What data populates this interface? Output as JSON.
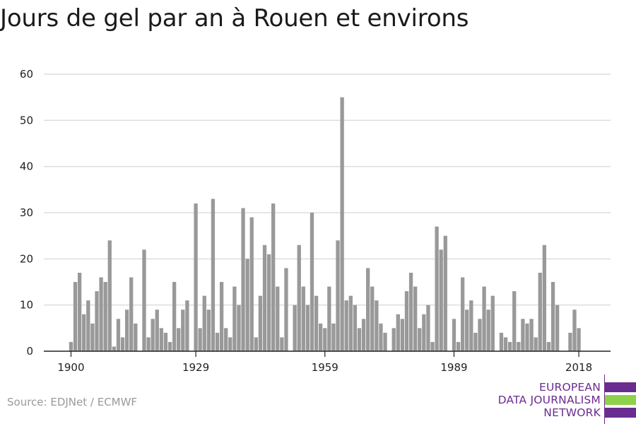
{
  "title": "Jours de gel par an à Rouen et environs",
  "source": "Source: EDJNet / ECMWF",
  "logo": {
    "lines": [
      "EUROPEAN",
      "DATA JOURNALISM",
      "NETWORK"
    ],
    "colors": {
      "purple": "#6b2c91",
      "green": "#8fd24a"
    }
  },
  "colors": {
    "bar": "#999999",
    "grid": "#dddddd",
    "axis": "#222222"
  },
  "chart_data": {
    "type": "bar",
    "title": "Jours de gel par an à Rouen et environs",
    "xlabel": "",
    "ylabel": "",
    "ylim": [
      0,
      60
    ],
    "yticks": [
      0,
      10,
      20,
      30,
      40,
      50,
      60
    ],
    "xticks": [
      1900,
      1929,
      1959,
      1989,
      2018
    ],
    "grid": true,
    "x": [
      1900,
      1901,
      1902,
      1903,
      1904,
      1905,
      1906,
      1907,
      1908,
      1909,
      1910,
      1911,
      1912,
      1913,
      1914,
      1915,
      1916,
      1917,
      1918,
      1919,
      1920,
      1921,
      1922,
      1923,
      1924,
      1925,
      1926,
      1927,
      1928,
      1929,
      1930,
      1931,
      1932,
      1933,
      1934,
      1935,
      1936,
      1937,
      1938,
      1939,
      1940,
      1941,
      1942,
      1943,
      1944,
      1945,
      1946,
      1947,
      1948,
      1949,
      1950,
      1951,
      1952,
      1953,
      1954,
      1955,
      1956,
      1957,
      1958,
      1959,
      1960,
      1961,
      1962,
      1963,
      1964,
      1965,
      1966,
      1967,
      1968,
      1969,
      1970,
      1971,
      1972,
      1973,
      1974,
      1975,
      1976,
      1977,
      1978,
      1979,
      1980,
      1981,
      1982,
      1983,
      1984,
      1985,
      1986,
      1987,
      1988,
      1989,
      1990,
      1991,
      1992,
      1993,
      1994,
      1995,
      1996,
      1997,
      1998,
      1999,
      2000,
      2001,
      2002,
      2003,
      2004,
      2005,
      2006,
      2007,
      2008,
      2009,
      2010,
      2011,
      2012,
      2013,
      2014,
      2015,
      2016,
      2017,
      2018,
      2019
    ],
    "values": [
      2,
      15,
      17,
      8,
      11,
      6,
      13,
      16,
      15,
      24,
      1,
      7,
      3,
      9,
      16,
      6,
      0,
      22,
      3,
      7,
      9,
      5,
      4,
      2,
      15,
      5,
      9,
      11,
      0,
      32,
      5,
      12,
      9,
      33,
      4,
      15,
      5,
      3,
      14,
      10,
      31,
      20,
      29,
      3,
      12,
      23,
      21,
      32,
      14,
      3,
      18,
      0,
      10,
      23,
      14,
      10,
      30,
      12,
      6,
      5,
      14,
      6,
      24,
      55,
      11,
      12,
      10,
      5,
      7,
      18,
      14,
      11,
      6,
      4,
      0,
      5,
      8,
      7,
      13,
      17,
      14,
      5,
      8,
      10,
      2,
      27,
      22,
      25,
      0,
      7,
      2,
      16,
      9,
      11,
      4,
      7,
      14,
      9,
      12,
      0,
      4,
      3,
      2,
      13,
      2,
      7,
      6,
      7,
      3,
      17,
      23,
      2,
      15,
      10,
      0,
      0,
      4,
      9,
      5,
      0
    ]
  }
}
